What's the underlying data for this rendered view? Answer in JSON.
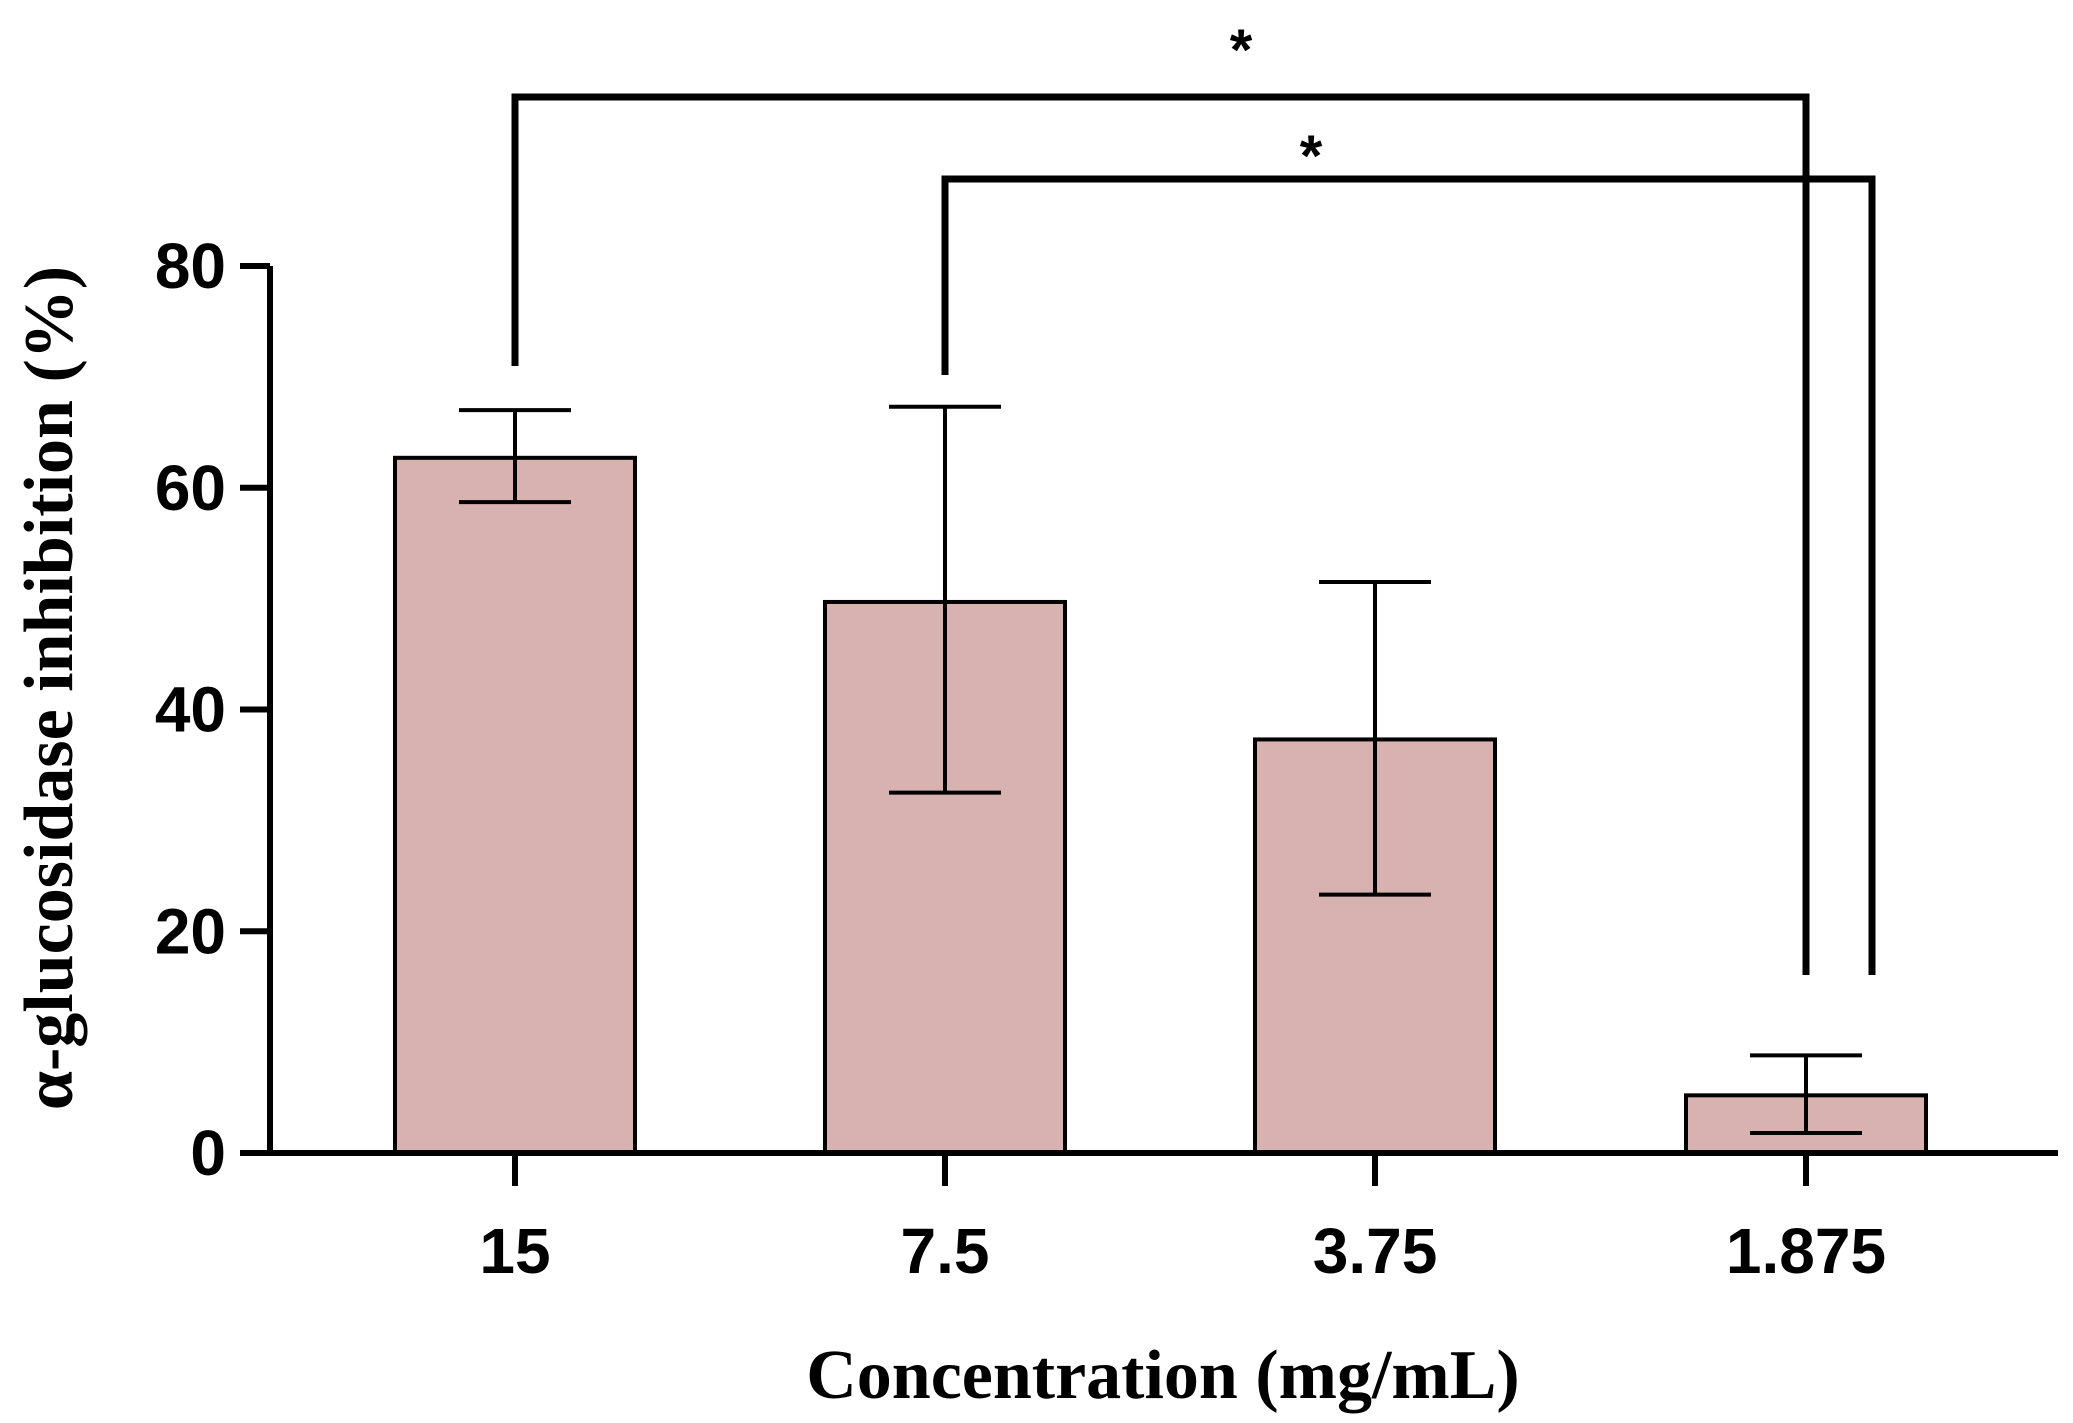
{
  "chart_data": {
    "type": "bar",
    "title": "",
    "xlabel": "Concentration (mg/mL)",
    "ylabel": "α-glucosidase inhibition (%)",
    "categories": [
      "15",
      "7.5",
      "3.75",
      "1.875"
    ],
    "values": [
      62.7,
      49.7,
      37.3,
      5.2
    ],
    "error_upper": [
      67.0,
      67.3,
      51.5,
      8.8
    ],
    "error_lower": [
      58.7,
      32.5,
      23.3,
      1.8
    ],
    "ylim": [
      0,
      80
    ],
    "yticks": [
      "0",
      "20",
      "40",
      "60",
      "80"
    ],
    "bar_color": "#d8b2b1",
    "significance": [
      {
        "from": "15",
        "to": "1.875",
        "label": "*"
      },
      {
        "from": "7.5",
        "to": "1.875",
        "label": "*"
      }
    ]
  }
}
